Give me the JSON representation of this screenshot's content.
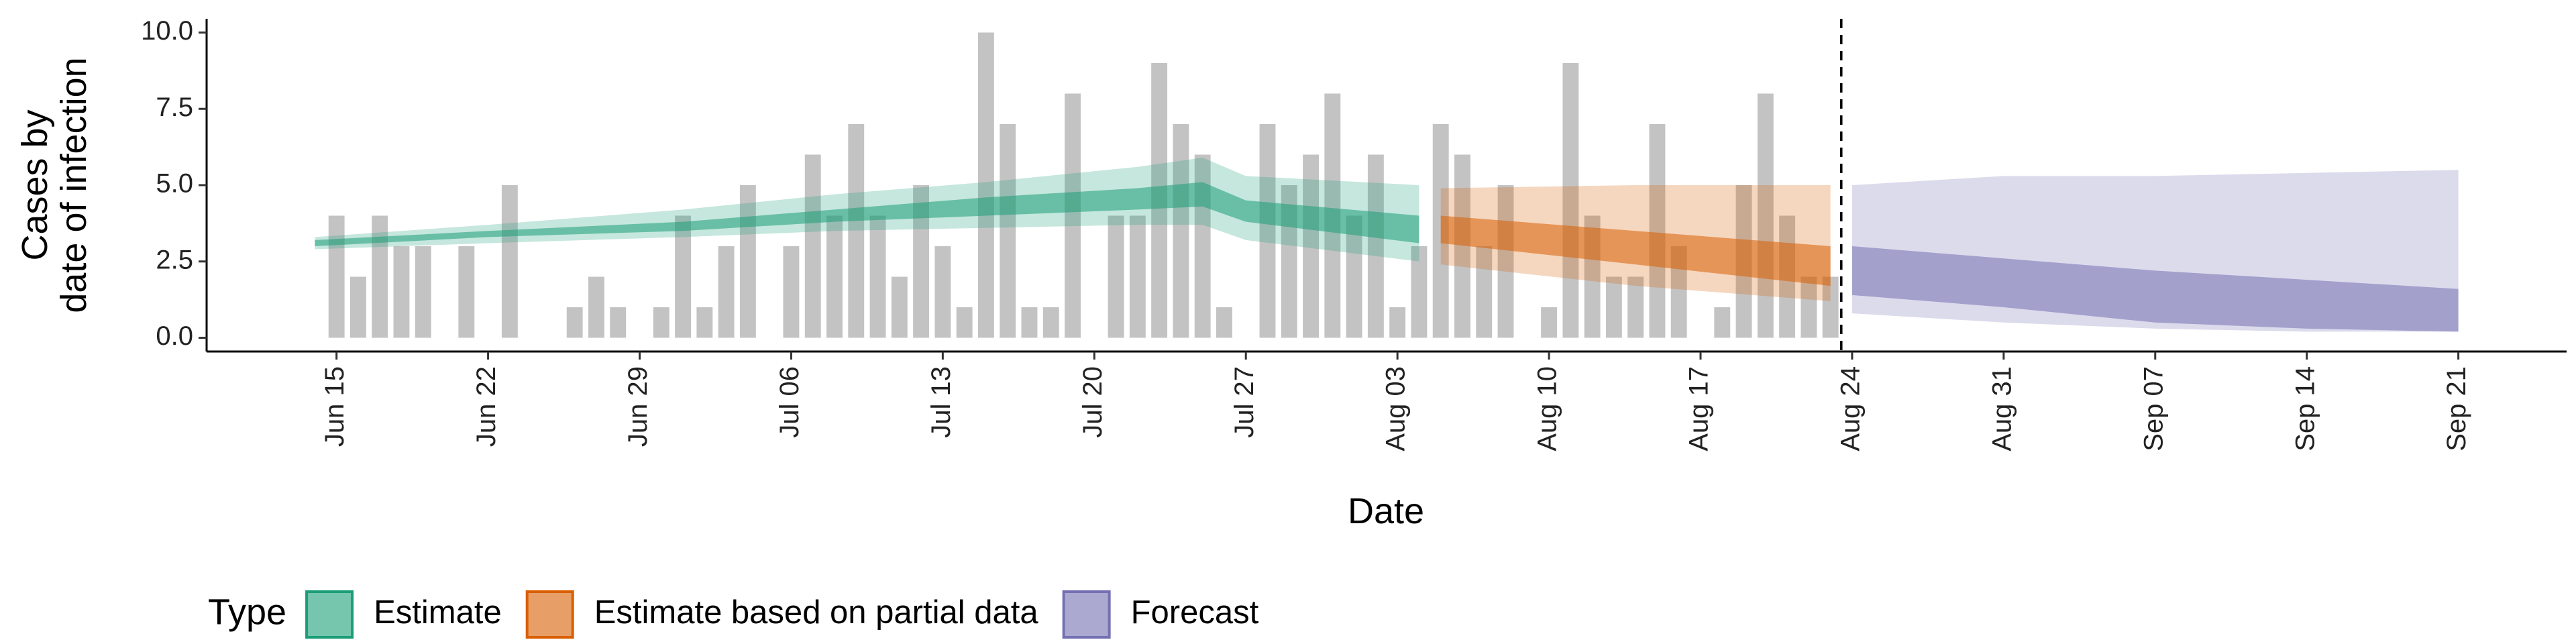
{
  "chart_data": {
    "type": "bar-ribbon",
    "ylabel": [
      "Cases by",
      "date of infection"
    ],
    "xlabel": "Date",
    "xlim": [
      "06-09",
      "09-26"
    ],
    "xticks": [
      {
        "value": "06-15",
        "label": "Jun 15"
      },
      {
        "value": "06-22",
        "label": "Jun 22"
      },
      {
        "value": "06-29",
        "label": "Jun 29"
      },
      {
        "value": "07-06",
        "label": "Jul 06"
      },
      {
        "value": "07-13",
        "label": "Jul 13"
      },
      {
        "value": "07-20",
        "label": "Jul 20"
      },
      {
        "value": "07-27",
        "label": "Jul 27"
      },
      {
        "value": "08-03",
        "label": "Aug 03"
      },
      {
        "value": "08-10",
        "label": "Aug 10"
      },
      {
        "value": "08-17",
        "label": "Aug 17"
      },
      {
        "value": "08-24",
        "label": "Aug 24"
      },
      {
        "value": "08-31",
        "label": "Aug 31"
      },
      {
        "value": "09-07",
        "label": "Sep 07"
      },
      {
        "value": "09-14",
        "label": "Sep 14"
      },
      {
        "value": "09-21",
        "label": "Sep 21"
      }
    ],
    "ylim": [
      -0.45,
      10.45
    ],
    "yticks": [
      {
        "value": 0,
        "label": "0.0"
      },
      {
        "value": 2.5,
        "label": "2.5"
      },
      {
        "value": 5,
        "label": "5.0"
      },
      {
        "value": 7.5,
        "label": "7.5"
      },
      {
        "value": 10,
        "label": "10.0"
      }
    ],
    "bar_color": "#bdbdbd",
    "bars": {
      "x": [
        "06-15",
        "06-16",
        "06-17",
        "06-18",
        "06-19",
        "06-20",
        "06-21",
        "06-22",
        "06-23",
        "06-24",
        "06-25",
        "06-26",
        "06-27",
        "06-28",
        "06-29",
        "06-30",
        "07-01",
        "07-02",
        "07-03",
        "07-04",
        "07-05",
        "07-06",
        "07-07",
        "07-08",
        "07-09",
        "07-10",
        "07-11",
        "07-12",
        "07-13",
        "07-14",
        "07-15",
        "07-16",
        "07-17",
        "07-18",
        "07-19",
        "07-20",
        "07-21",
        "07-22",
        "07-23",
        "07-24",
        "07-25",
        "07-26",
        "07-27",
        "07-28",
        "07-29",
        "07-30",
        "07-31",
        "08-01",
        "08-02",
        "08-03",
        "08-04",
        "08-05",
        "08-06",
        "08-07",
        "08-08",
        "08-09",
        "08-10",
        "08-11",
        "08-12",
        "08-13",
        "08-14",
        "08-15",
        "08-16",
        "08-17",
        "08-18",
        "08-19",
        "08-20",
        "08-21",
        "08-22",
        "08-23"
      ],
      "values": [
        4,
        2,
        4,
        3,
        3,
        0,
        3,
        0,
        5,
        0,
        0,
        1,
        2,
        1,
        0,
        1,
        4,
        1,
        3,
        5,
        0,
        3,
        6,
        4,
        7,
        4,
        2,
        5,
        3,
        1,
        10,
        7,
        1,
        1,
        8,
        0,
        4,
        4,
        9,
        7,
        6,
        1,
        0,
        7,
        5,
        6,
        8,
        4,
        6,
        1,
        3,
        7,
        6,
        3,
        5,
        0,
        1,
        9,
        4,
        2,
        2,
        7,
        3,
        0,
        1,
        5,
        8,
        4,
        2,
        2
      ]
    },
    "legend_title": "Type",
    "series": [
      {
        "name": "Estimate",
        "color": "#1b9e77",
        "x": [
          "06-14",
          "06-22",
          "07-01",
          "07-08",
          "07-15",
          "07-22",
          "07-25",
          "07-27",
          "08-04"
        ],
        "upper90": [
          3.3,
          3.7,
          4.2,
          4.7,
          5.1,
          5.6,
          5.9,
          5.3,
          5.0
        ],
        "lower90": [
          2.9,
          3.1,
          3.3,
          3.5,
          3.6,
          3.7,
          3.7,
          3.2,
          2.5
        ],
        "upper50": [
          3.2,
          3.5,
          3.8,
          4.2,
          4.6,
          4.9,
          5.1,
          4.5,
          4.0
        ],
        "lower50": [
          3.0,
          3.3,
          3.5,
          3.8,
          4.0,
          4.2,
          4.3,
          3.8,
          3.1
        ]
      },
      {
        "name": "Estimate based on partial data",
        "color": "#d95f02",
        "x": [
          "08-05",
          "08-14",
          "08-23"
        ],
        "upper90": [
          4.9,
          5.0,
          5.0
        ],
        "lower90": [
          2.4,
          1.7,
          1.2
        ],
        "upper50": [
          4.0,
          3.5,
          3.0
        ],
        "lower50": [
          3.1,
          2.4,
          1.7
        ]
      },
      {
        "name": "Forecast",
        "color": "#7570b3",
        "x": [
          "08-24",
          "08-31",
          "09-07",
          "09-14",
          "09-21"
        ],
        "upper90": [
          5.0,
          5.3,
          5.3,
          5.4,
          5.5
        ],
        "lower90": [
          0.8,
          0.5,
          0.3,
          0.2,
          0.2
        ],
        "upper50": [
          3.0,
          2.6,
          2.2,
          1.9,
          1.6
        ],
        "lower50": [
          1.4,
          1.0,
          0.5,
          0.3,
          0.2
        ]
      }
    ]
  }
}
